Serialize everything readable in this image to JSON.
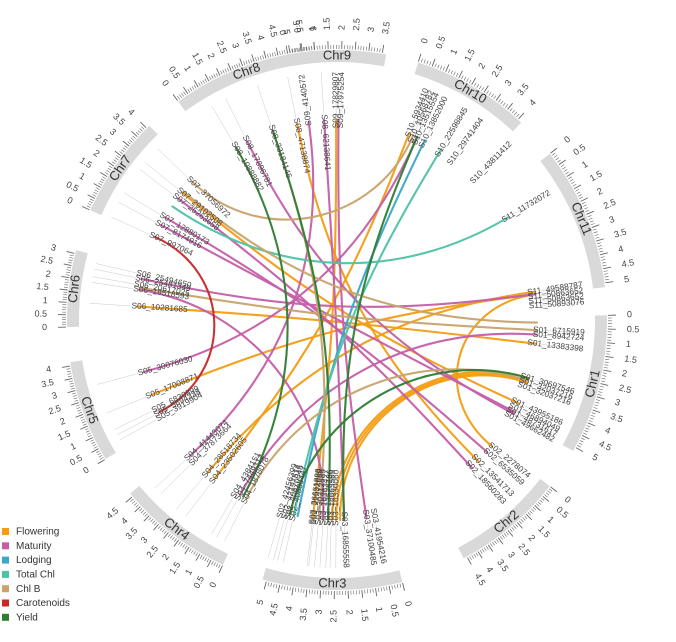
{
  "chromosomes": [
    {
      "name": "Chr9",
      "ticks": [
        "0",
        "0.5",
        "1",
        "1.5",
        "2",
        "2.5",
        "3",
        "3.5"
      ]
    },
    {
      "name": "Chr10",
      "ticks": [
        "0",
        "0.5",
        "1",
        "1.5",
        "2",
        "2.5",
        "3",
        "3.5",
        "4"
      ]
    },
    {
      "name": "Chr11",
      "ticks": [
        "0",
        "0.5",
        "1",
        "1.5",
        "2",
        "2.5",
        "3",
        "3.5",
        "4",
        "4.5",
        "5"
      ]
    },
    {
      "name": "Chr1",
      "ticks": [
        "0",
        "0.5",
        "1",
        "1.5",
        "2",
        "2.5",
        "3",
        "3.5",
        "4",
        "4.5",
        "5"
      ]
    },
    {
      "name": "Chr2",
      "ticks": [
        "0",
        "0.5",
        "1",
        "1.5",
        "2",
        "2.5",
        "3",
        "3.5",
        "4",
        "4.5"
      ]
    },
    {
      "name": "Chr3",
      "ticks": [
        "0",
        "0.5",
        "1",
        "1.5",
        "2",
        "2.5",
        "3",
        "3.5",
        "4",
        "4.5",
        "5"
      ]
    },
    {
      "name": "Chr4",
      "ticks": [
        "0",
        "0.5",
        "1",
        "1.5",
        "2",
        "2.5",
        "3",
        "3.5",
        "4",
        "4.5"
      ]
    },
    {
      "name": "Chr5",
      "ticks": [
        "0",
        "0.5",
        "1",
        "1.5",
        "2",
        "2.5",
        "3",
        "3.5",
        "4"
      ]
    },
    {
      "name": "Chr6",
      "ticks": [
        "0",
        "0.5",
        "1",
        "1.5",
        "2",
        "2.5",
        "3"
      ]
    },
    {
      "name": "Chr7",
      "ticks": [
        "0",
        "0.5",
        "1",
        "1.5",
        "2",
        "2.5",
        "3",
        "3.5",
        "4"
      ]
    },
    {
      "name": "Chr8",
      "ticks": [
        "0",
        "0.5",
        "1",
        "1.5",
        "2",
        "2.5",
        "3",
        "3.5",
        "4",
        "4.5",
        "5",
        "5.5",
        "6"
      ]
    }
  ],
  "snps": [
    {
      "id": "S01_6715919",
      "chr": "Chr1",
      "pos": 0.672
    },
    {
      "id": "S01_8942724",
      "chr": "Chr1",
      "pos": 0.894
    },
    {
      "id": "S01_13383398",
      "chr": "Chr1",
      "pos": 1.338
    },
    {
      "id": "S01_30697546",
      "chr": "Chr1",
      "pos": 3.07
    },
    {
      "id": "S01_32037216",
      "chr": "Chr1",
      "pos": 3.204
    },
    {
      "id": "S01_32037216",
      "chr": "Chr1",
      "pos": 3.204
    },
    {
      "id": "S01_43955186",
      "chr": "Chr1",
      "pos": 4.396
    },
    {
      "id": "S01_46894049",
      "chr": "Chr1",
      "pos": 4.689
    },
    {
      "id": "S01_48731617",
      "chr": "Chr1",
      "pos": 4.873
    },
    {
      "id": "S01_49662482",
      "chr": "Chr1",
      "pos": 4.966
    },
    {
      "id": "S02_2278074",
      "chr": "Chr2",
      "pos": 0.228
    },
    {
      "id": "S02_6535059",
      "chr": "Chr2",
      "pos": 0.654
    },
    {
      "id": "S02_13541713",
      "chr": "Chr2",
      "pos": 1.354
    },
    {
      "id": "S02_18560283",
      "chr": "Chr2",
      "pos": 1.856
    },
    {
      "id": "S02_42197514",
      "chr": "Chr3",
      "pos": 4.95
    },
    {
      "id": "S02_42456399",
      "chr": "Chr3",
      "pos": 4.75
    },
    {
      "id": "S02_40889447",
      "chr": "Chr3",
      "pos": 4.55
    },
    {
      "id": "S02_40870045",
      "chr": "Chr3",
      "pos": 4.35
    },
    {
      "id": "S03_36651888",
      "chr": "Chr3",
      "pos": 3.6
    },
    {
      "id": "S03_30312889",
      "chr": "Chr3",
      "pos": 3.3
    },
    {
      "id": "S03_22532889",
      "chr": "Chr3",
      "pos": 3.1
    },
    {
      "id": "S03_13525186",
      "chr": "Chr3",
      "pos": 2.85
    },
    {
      "id": "S03_16363427",
      "chr": "Chr3",
      "pos": 2.65
    },
    {
      "id": "S03_16330060",
      "chr": "Chr3",
      "pos": 2.45
    },
    {
      "id": "S03_16665569",
      "chr": "Chr3",
      "pos": 2.25
    },
    {
      "id": "S03_16855558",
      "chr": "Chr3",
      "pos": 2.05
    },
    {
      "id": "S03_37100485",
      "chr": "Chr3",
      "pos": 0.95
    },
    {
      "id": "S03_41954216",
      "chr": "Chr3",
      "pos": 0.55
    },
    {
      "id": "S04_7449312",
      "chr": "Chr4",
      "pos": 0.745
    },
    {
      "id": "S04_4384151",
      "chr": "Chr4",
      "pos": 0.55
    },
    {
      "id": "S04_1878078",
      "chr": "Chr4",
      "pos": 0.36
    },
    {
      "id": "S04_23502605",
      "chr": "Chr4",
      "pos": 2.35
    },
    {
      "id": "S04_28518734",
      "chr": "Chr4",
      "pos": 2.852
    },
    {
      "id": "S04_37873664",
      "chr": "Chr4",
      "pos": 3.787
    },
    {
      "id": "S04_41443074",
      "chr": "Chr4",
      "pos": 4.144
    },
    {
      "id": "S05_3919904",
      "chr": "Chr5",
      "pos": 0.392
    },
    {
      "id": "S05_5694338",
      "chr": "Chr5",
      "pos": 0.569
    },
    {
      "id": "S05_6830899",
      "chr": "Chr5",
      "pos": 0.683
    },
    {
      "id": "S05_17008871",
      "chr": "Chr5",
      "pos": 1.701
    },
    {
      "id": "S05_30076030",
      "chr": "Chr5",
      "pos": 3.008
    },
    {
      "id": "S06_10281685",
      "chr": "Chr6",
      "pos": 1.028
    },
    {
      "id": "S06_19518593",
      "chr": "Chr6",
      "pos": 1.952
    },
    {
      "id": "S06_20617025",
      "chr": "Chr6",
      "pos": 2.062
    },
    {
      "id": "S06_25481349",
      "chr": "Chr6",
      "pos": 2.548
    },
    {
      "id": "S06_25494650",
      "chr": "Chr6",
      "pos": 2.72
    },
    {
      "id": "S07_997064",
      "chr": "Chr7",
      "pos": 0.1
    },
    {
      "id": "S07_8174916",
      "chr": "Chr7",
      "pos": 0.817
    },
    {
      "id": "S07_12880173",
      "chr": "Chr7",
      "pos": 1.288
    },
    {
      "id": "S07_25263658",
      "chr": "Chr7",
      "pos": 2.526
    },
    {
      "id": "S07_29102508",
      "chr": "Chr7",
      "pos": 2.91
    },
    {
      "id": "S07_37056972",
      "chr": "Chr7",
      "pos": 3.706
    },
    {
      "id": "S08_10888882",
      "chr": "Chr8",
      "pos": 1.089
    },
    {
      "id": "S08_17896781",
      "chr": "Chr8",
      "pos": 1.79
    },
    {
      "id": "S08_33184145",
      "chr": "Chr8",
      "pos": 3.318
    },
    {
      "id": "S08_47138874",
      "chr": "Chr8",
      "pos": 4.714
    },
    {
      "id": "S08_62138641",
      "chr": "Chr8",
      "pos": 6.214
    },
    {
      "id": "S09_4140572",
      "chr": "Chr9",
      "pos": 0.414
    },
    {
      "id": "S09_17829807",
      "chr": "Chr9",
      "pos": 1.783
    },
    {
      "id": "S09_17975254",
      "chr": "Chr9",
      "pos": 1.9
    },
    {
      "id": "S10_5934410",
      "chr": "Chr10",
      "pos": 0.593
    },
    {
      "id": "S10_10568782",
      "chr": "Chr10",
      "pos": 0.8
    },
    {
      "id": "S10_13515554",
      "chr": "Chr10",
      "pos": 1.0
    },
    {
      "id": "S10_13852000",
      "chr": "Chr10",
      "pos": 1.385
    },
    {
      "id": "S10_22598845",
      "chr": "Chr10",
      "pos": 2.26
    },
    {
      "id": "S10_29741404",
      "chr": "Chr10",
      "pos": 2.974
    },
    {
      "id": "S10_43811412",
      "chr": "Chr10",
      "pos": 4.381
    },
    {
      "id": "S11_11732072",
      "chr": "Chr11",
      "pos": 1.173
    },
    {
      "id": "S11_49588787",
      "chr": "Chr11",
      "pos": 4.959
    },
    {
      "id": "S11_50863652",
      "chr": "Chr11",
      "pos": 5.086
    },
    {
      "id": "S11_50863652",
      "chr": "Chr11",
      "pos": 5.086
    },
    {
      "id": "S11_50893076",
      "chr": "Chr11",
      "pos": 5.089
    }
  ],
  "links": [
    {
      "trait": "Flowering",
      "from": [
        "Chr11",
        4.96
      ],
      "to": [
        "Chr4",
        2.85
      ]
    },
    {
      "trait": "Flowering",
      "from": [
        "Chr11",
        5.08
      ],
      "to": [
        "Chr5",
        1.7
      ]
    },
    {
      "trait": "Flowering",
      "from": [
        "Chr1",
        3.07
      ],
      "to": [
        "Chr3",
        2.65
      ]
    },
    {
      "trait": "Flowering",
      "from": [
        "Chr1",
        3.2
      ],
      "to": [
        "Chr3",
        2.45
      ]
    },
    {
      "trait": "Flowering",
      "from": [
        "Chr1",
        3.3
      ],
      "to": [
        "Chr3",
        2.25
      ]
    },
    {
      "trait": "Flowering",
      "from": [
        "Chr1",
        1.34
      ],
      "to": [
        "Chr6",
        1.03
      ]
    },
    {
      "trait": "Flowering",
      "from": [
        "Chr10",
        0.59
      ],
      "to": [
        "Chr4",
        2.35
      ]
    },
    {
      "trait": "Flowering",
      "from": [
        "Chr9",
        1.78
      ],
      "to": [
        "Chr3",
        3.6
      ]
    },
    {
      "trait": "Flowering",
      "from": [
        "Chr1",
        4.4
      ],
      "to": [
        "Chr7",
        2.91
      ]
    },
    {
      "trait": "Flowering",
      "from": [
        "Chr8",
        4.71
      ],
      "to": [
        "Chr2",
        1.35
      ]
    },
    {
      "trait": "Flowering",
      "from": [
        "Chr11",
        5.09
      ],
      "to": [
        "Chr2",
        0.23
      ]
    },
    {
      "trait": "Maturity",
      "from": [
        "Chr7",
        0.82
      ],
      "to": [
        "Chr1",
        4.87
      ]
    },
    {
      "trait": "Maturity",
      "from": [
        "Chr7",
        1.29
      ],
      "to": [
        "Chr2",
        0.65
      ]
    },
    {
      "trait": "Maturity",
      "from": [
        "Chr8",
        6.21
      ],
      "to": [
        "Chr3",
        2.05
      ]
    },
    {
      "trait": "Maturity",
      "from": [
        "Chr9",
        0.41
      ],
      "to": [
        "Chr4",
        4.14
      ]
    },
    {
      "trait": "Maturity",
      "from": [
        "Chr9",
        1.9
      ],
      "to": [
        "Chr3",
        0.95
      ]
    },
    {
      "trait": "Maturity",
      "from": [
        "Chr10",
        1.0
      ],
      "to": [
        "Chr5",
        3.01
      ]
    },
    {
      "trait": "Maturity",
      "from": [
        "Chr8",
        1.79
      ],
      "to": [
        "Chr1",
        4.97
      ]
    },
    {
      "trait": "Maturity",
      "from": [
        "Chr6",
        2.55
      ],
      "to": [
        "Chr11",
        5.08
      ]
    },
    {
      "trait": "Maturity",
      "from": [
        "Chr1",
        0.89
      ],
      "to": [
        "Chr4",
        0.75
      ]
    },
    {
      "trait": "Maturity",
      "from": [
        "Chr6",
        1.95
      ],
      "to": [
        "Chr3",
        3.1
      ]
    },
    {
      "trait": "Maturity",
      "from": [
        "Chr7",
        2.53
      ],
      "to": [
        "Chr2",
        1.86
      ]
    },
    {
      "trait": "Lodging",
      "from": [
        "Chr10",
        1.39
      ],
      "to": [
        "Chr3",
        4.35
      ]
    },
    {
      "trait": "Total Chl",
      "from": [
        "Chr10",
        2.26
      ],
      "to": [
        "Chr3",
        4.55
      ]
    },
    {
      "trait": "Total Chl",
      "from": [
        "Chr11",
        1.17
      ],
      "to": [
        "Chr7",
        2.0
      ]
    },
    {
      "trait": "Chl B",
      "from": [
        "Chr7",
        3.71
      ],
      "to": [
        "Chr10",
        0.8
      ]
    },
    {
      "trait": "Chl B",
      "from": [
        "Chr6",
        2.06
      ],
      "to": [
        "Chr1",
        0.67
      ]
    },
    {
      "trait": "Chl B",
      "from": [
        "Chr8",
        3.32
      ],
      "to": [
        "Chr3",
        3.3
      ]
    },
    {
      "trait": "Chl B",
      "from": [
        "Chr4",
        0.36
      ],
      "to": [
        "Chr1",
        3.2
      ]
    },
    {
      "trait": "Chl B",
      "from": [
        "Chr7",
        3.0
      ],
      "to": [
        "Chr1",
        0.3
      ]
    },
    {
      "trait": "Carotenoids",
      "from": [
        "Chr7",
        0.1
      ],
      "to": [
        "Chr5",
        0.68
      ]
    },
    {
      "trait": "Yield",
      "from": [
        "Chr8",
        3.32
      ],
      "to": [
        "Chr3",
        2.85
      ]
    },
    {
      "trait": "Yield",
      "from": [
        "Chr8",
        1.09
      ],
      "to": [
        "Chr4",
        0.55
      ]
    },
    {
      "trait": "Yield",
      "from": [
        "Chr10",
        1.0
      ],
      "to": [
        "Chr3",
        2.05
      ]
    },
    {
      "trait": "Yield",
      "from": [
        "Chr3",
        4.75
      ],
      "to": [
        "Chr1",
        3.07
      ]
    }
  ],
  "legend": [
    {
      "label": "Flowering",
      "color": "#f39c12"
    },
    {
      "label": "Maturity",
      "color": "#c45ea8"
    },
    {
      "label": "Lodging",
      "color": "#3aa6c9"
    },
    {
      "label": "Total Chl",
      "color": "#4fc1a6"
    },
    {
      "label": "Chl B",
      "color": "#c8a36b"
    },
    {
      "label": "Carotenoids",
      "color": "#c62828"
    },
    {
      "label": "Yield",
      "color": "#2e7d32"
    }
  ]
}
